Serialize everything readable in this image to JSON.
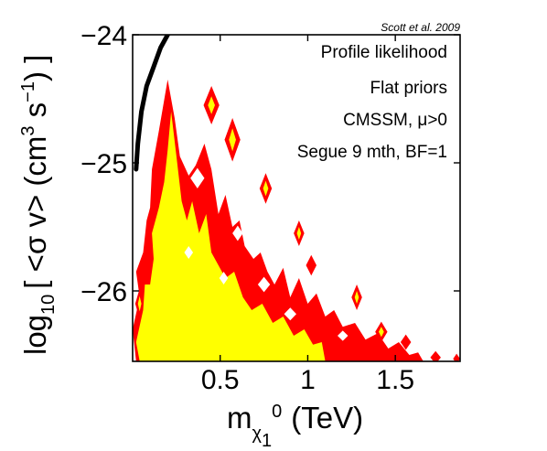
{
  "chart_data": {
    "type": "contour",
    "credit": "Scott et al. 2009",
    "annotations": [
      "Profile likelihood",
      "Flat priors",
      "CMSSM, μ>0",
      "Segue 9 mth, BF=1"
    ],
    "xlabel": {
      "main": "m",
      "sub1": "χ",
      "sub2": "1",
      "sup": "0",
      "unit": "(TeV)"
    },
    "ylabel": {
      "prefix": "log",
      "sub": "10",
      "body": "[ <σ v> (cm",
      "sup1": "3",
      "mid": " s",
      "sup2": "−1",
      "end": ") ]"
    },
    "xlim": [
      0,
      1.87
    ],
    "ylim": [
      -26.55,
      -24
    ],
    "xticks": [
      {
        "value": 0.5,
        "label": "0.5"
      },
      {
        "value": 1.0,
        "label": "1"
      },
      {
        "value": 1.5,
        "label": "1.5"
      }
    ],
    "yticks": [
      {
        "value": -24,
        "label": "−24"
      },
      {
        "value": -25,
        "label": "−25"
      },
      {
        "value": -26,
        "label": "−26"
      }
    ],
    "colors": {
      "outer_region": "#ff0000",
      "inner_region": "#ffff00",
      "limit_curve": "#000000",
      "frame": "#000000"
    },
    "limit_curve": {
      "name": "",
      "x": [
        0.02,
        0.03,
        0.05,
        0.08,
        0.12,
        0.16,
        0.2
      ],
      "y": [
        -25.05,
        -24.85,
        -24.6,
        -24.4,
        -24.25,
        -24.1,
        -24.0
      ]
    },
    "outer_region": [
      [
        0.02,
        -26.55
      ],
      [
        0.0,
        -26.3
      ],
      [
        0.04,
        -26.05
      ],
      [
        0.02,
        -25.85
      ],
      [
        0.06,
        -25.7
      ],
      [
        0.08,
        -25.45
      ],
      [
        0.1,
        -25.35
      ],
      [
        0.11,
        -25.05
      ],
      [
        0.15,
        -24.75
      ],
      [
        0.2,
        -24.35
      ],
      [
        0.24,
        -24.65
      ],
      [
        0.27,
        -24.95
      ],
      [
        0.32,
        -25.1
      ],
      [
        0.36,
        -25.02
      ],
      [
        0.41,
        -24.85
      ],
      [
        0.45,
        -25.05
      ],
      [
        0.49,
        -25.4
      ],
      [
        0.53,
        -25.25
      ],
      [
        0.57,
        -25.5
      ],
      [
        0.61,
        -25.45
      ],
      [
        0.64,
        -25.65
      ],
      [
        0.69,
        -25.75
      ],
      [
        0.73,
        -25.7
      ],
      [
        0.77,
        -25.85
      ],
      [
        0.81,
        -25.95
      ],
      [
        0.86,
        -25.82
      ],
      [
        0.9,
        -26.05
      ],
      [
        0.95,
        -25.9
      ],
      [
        1.0,
        -26.1
      ],
      [
        1.05,
        -26.02
      ],
      [
        1.1,
        -26.2
      ],
      [
        1.15,
        -26.15
      ],
      [
        1.2,
        -26.28
      ],
      [
        1.27,
        -26.25
      ],
      [
        1.33,
        -26.38
      ],
      [
        1.4,
        -26.33
      ],
      [
        1.46,
        -26.45
      ],
      [
        1.52,
        -26.4
      ],
      [
        1.58,
        -26.5
      ],
      [
        1.63,
        -26.48
      ],
      [
        1.66,
        -26.55
      ]
    ],
    "inner_region": [
      [
        0.04,
        -26.55
      ],
      [
        0.02,
        -26.4
      ],
      [
        0.06,
        -26.15
      ],
      [
        0.07,
        -25.95
      ],
      [
        0.1,
        -25.95
      ],
      [
        0.12,
        -25.75
      ],
      [
        0.11,
        -25.55
      ],
      [
        0.15,
        -25.35
      ],
      [
        0.18,
        -25.15
      ],
      [
        0.2,
        -24.9
      ],
      [
        0.22,
        -24.6
      ],
      [
        0.25,
        -24.95
      ],
      [
        0.28,
        -25.3
      ],
      [
        0.31,
        -25.45
      ],
      [
        0.34,
        -25.3
      ],
      [
        0.38,
        -25.55
      ],
      [
        0.42,
        -25.4
      ],
      [
        0.45,
        -25.7
      ],
      [
        0.49,
        -25.8
      ],
      [
        0.53,
        -25.9
      ],
      [
        0.58,
        -25.85
      ],
      [
        0.63,
        -26.05
      ],
      [
        0.68,
        -26.15
      ],
      [
        0.74,
        -26.1
      ],
      [
        0.8,
        -26.25
      ],
      [
        0.86,
        -26.2
      ],
      [
        0.92,
        -26.35
      ],
      [
        0.98,
        -26.3
      ],
      [
        1.03,
        -26.42
      ],
      [
        1.08,
        -26.4
      ],
      [
        1.1,
        -26.55
      ]
    ],
    "holes": [
      [
        0.37,
        -25.12,
        0.04,
        0.08
      ],
      [
        0.6,
        -25.55,
        0.03,
        0.06
      ],
      [
        0.52,
        -25.9,
        0.025,
        0.05
      ],
      [
        0.75,
        -25.95,
        0.035,
        0.06
      ],
      [
        0.9,
        -26.18,
        0.035,
        0.05
      ],
      [
        0.32,
        -25.7,
        0.025,
        0.05
      ],
      [
        1.2,
        -26.35,
        0.03,
        0.04
      ]
    ],
    "outer_islands": [
      [
        0.57,
        -24.82,
        0.045,
        0.17
      ],
      [
        0.45,
        -24.55,
        0.045,
        0.15
      ],
      [
        0.76,
        -25.2,
        0.035,
        0.12
      ],
      [
        0.95,
        -25.55,
        0.03,
        0.1
      ],
      [
        1.28,
        -26.05,
        0.03,
        0.1
      ],
      [
        1.02,
        -25.8,
        0.03,
        0.08
      ],
      [
        0.04,
        -26.1,
        0.025,
        0.12
      ],
      [
        1.42,
        -26.32,
        0.035,
        0.08
      ],
      [
        1.56,
        -26.4,
        0.03,
        0.06
      ],
      [
        1.73,
        -26.52,
        0.03,
        0.05
      ],
      [
        1.85,
        -26.53,
        0.02,
        0.04
      ]
    ],
    "inner_islands": [
      [
        0.57,
        -24.82,
        0.02,
        0.09
      ],
      [
        0.45,
        -24.55,
        0.02,
        0.07
      ],
      [
        0.76,
        -25.2,
        0.015,
        0.06
      ],
      [
        0.95,
        -25.55,
        0.012,
        0.05
      ],
      [
        1.28,
        -26.05,
        0.012,
        0.05
      ],
      [
        0.04,
        -26.1,
        0.01,
        0.06
      ],
      [
        1.42,
        -26.32,
        0.015,
        0.04
      ]
    ]
  }
}
